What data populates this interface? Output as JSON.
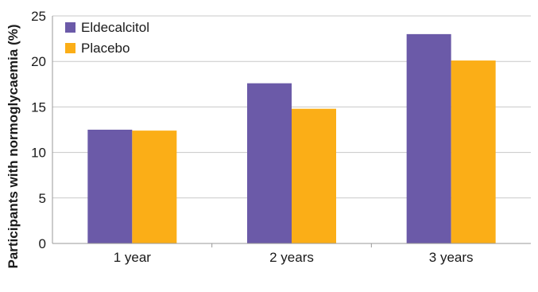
{
  "chart_data": {
    "type": "bar",
    "title": "",
    "xlabel": "",
    "ylabel": "Participants with normoglycaemia (%)",
    "categories": [
      "1 year",
      "2 years",
      "3 years"
    ],
    "series": [
      {
        "name": "Eldecalcitol",
        "color": "#6B5AA8",
        "values": [
          12.5,
          17.6,
          23.0
        ]
      },
      {
        "name": "Placebo",
        "color": "#FBAE17",
        "values": [
          12.4,
          14.8,
          20.1
        ]
      }
    ],
    "ylim": [
      0,
      25
    ],
    "yticks": [
      0,
      5,
      10,
      15,
      20,
      25
    ],
    "grid": false,
    "legend_position": "top-left"
  }
}
